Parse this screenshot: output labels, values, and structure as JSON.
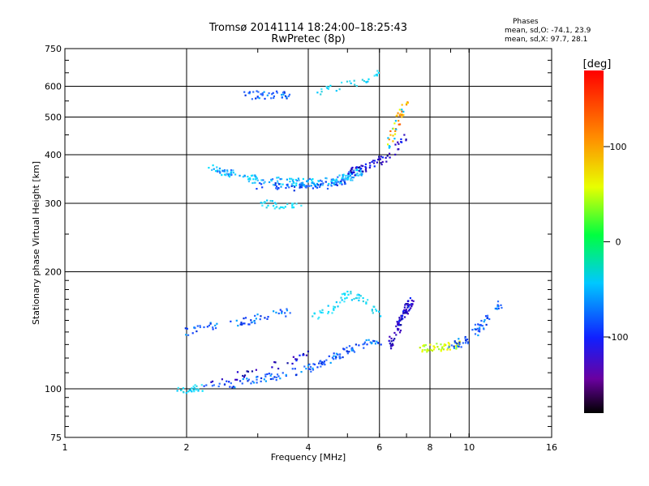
{
  "header": {
    "title": "Tromsø 20141114 18:24:00–18:25:43",
    "subtitle": "RwPretec (8p)"
  },
  "phases": {
    "title": "Phases",
    "line_o": "mean, sd,O: -74.1, 23.9",
    "line_x": "mean, sd,X:  97.7, 28.1"
  },
  "colorbar": {
    "unit": "[deg]",
    "ticks": [
      "100",
      "0",
      "-100"
    ],
    "tick_values": [
      100,
      0,
      -100
    ],
    "range": [
      -180,
      180
    ]
  },
  "chart_data": {
    "type": "scatter",
    "xlabel": "Frequency [MHz]",
    "ylabel": "Stationary phase Virtual Height [km]",
    "xscale": "log",
    "yscale": "log",
    "xlim": [
      1,
      16
    ],
    "ylim": [
      75,
      750
    ],
    "x_ticks": [
      1,
      2,
      4,
      6,
      8,
      10,
      16
    ],
    "x_tick_labels": [
      "1",
      "2",
      "4",
      "6",
      "8",
      "10",
      "16"
    ],
    "y_ticks": [
      75,
      100,
      200,
      300,
      400,
      500,
      600,
      750
    ],
    "y_tick_labels": [
      "75",
      "100",
      "200",
      "300",
      "400",
      "500",
      "600",
      "750"
    ],
    "grid": true,
    "color_scale": "rainbow",
    "traces": [
      {
        "x": [
          1.85,
          2.0,
          2.1,
          2.2
        ],
        "y": [
          100,
          100,
          100,
          100
        ],
        "color": "cyan",
        "count": 25
      },
      {
        "x": [
          2.2,
          2.6,
          3.0,
          3.4,
          3.8,
          4.2,
          4.6,
          5.0,
          5.5,
          6.0
        ],
        "y": [
          101,
          103,
          106,
          108,
          111,
          115,
          120,
          125,
          130,
          133
        ],
        "color": "blue",
        "count": 130
      },
      {
        "x": [
          2.3,
          2.9,
          3.6,
          4.0
        ],
        "y": [
          104,
          110,
          118,
          125
        ],
        "color": "darkblue",
        "count": 30
      },
      {
        "x": [
          2.0,
          2.3,
          2.6,
          2.8,
          3.0,
          3.3,
          3.6
        ],
        "y": [
          140,
          145,
          150,
          148,
          152,
          155,
          158
        ],
        "color": "blue",
        "count": 60
      },
      {
        "x": [
          4.0,
          4.5,
          5.0,
          5.5,
          6.0
        ],
        "y": [
          150,
          160,
          175,
          170,
          155
        ],
        "color": "cyan",
        "count": 60
      },
      {
        "x": [
          6.3,
          6.8,
          7.2
        ],
        "y": [
          125,
          150,
          170
        ],
        "color": "darkblue",
        "count": 80
      },
      {
        "x": [
          7.5,
          8.5,
          9.5
        ],
        "y": [
          127,
          128,
          130
        ],
        "color": "yellow",
        "count": 50
      },
      {
        "x": [
          9.0,
          10.0,
          11.0,
          12.0
        ],
        "y": [
          128,
          135,
          150,
          165
        ],
        "color": "blue",
        "count": 60
      },
      {
        "x": [
          2.3,
          2.6,
          3.0,
          3.5,
          4.0,
          4.5,
          5.0,
          5.5
        ],
        "y": [
          375,
          355,
          345,
          340,
          340,
          342,
          350,
          365
        ],
        "color": "lightblue",
        "count": 200
      },
      {
        "x": [
          3.0,
          3.5,
          4.0,
          4.5,
          5.0
        ],
        "y": [
          335,
          330,
          332,
          335,
          345
        ],
        "color": "blue",
        "count": 60
      },
      {
        "x": [
          5.0,
          5.5,
          6.0,
          6.5,
          7.0
        ],
        "y": [
          360,
          370,
          385,
          410,
          450
        ],
        "color": "darkblue",
        "count": 60
      },
      {
        "x": [
          6.3,
          6.6,
          7.0
        ],
        "y": [
          420,
          480,
          550
        ],
        "color": "orange",
        "count": 40
      },
      {
        "x": [
          2.8,
          3.2,
          3.6
        ],
        "y": [
          570,
          570,
          572
        ],
        "color": "blue",
        "count": 40
      },
      {
        "x": [
          4.2,
          4.8,
          5.5,
          6.0
        ],
        "y": [
          580,
          600,
          620,
          650
        ],
        "color": "cyan",
        "count": 30
      },
      {
        "x": [
          3.0,
          3.4,
          3.8
        ],
        "y": [
          300,
          296,
          293
        ],
        "color": "cyan",
        "count": 30
      }
    ]
  }
}
